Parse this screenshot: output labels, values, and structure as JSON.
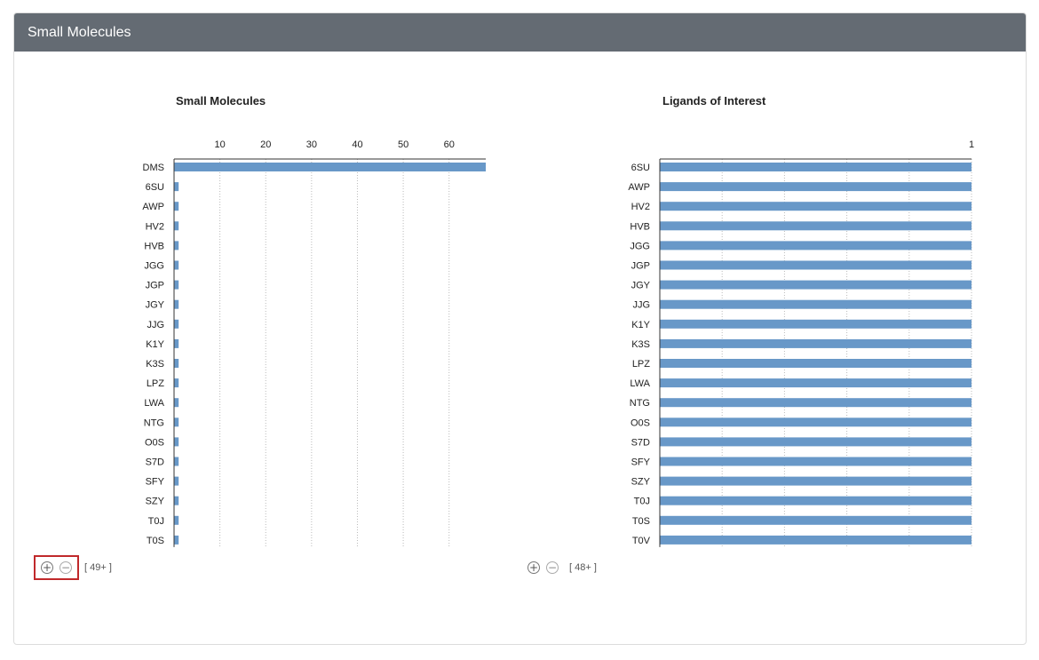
{
  "panel": {
    "title": "Small Molecules"
  },
  "chart_data": [
    {
      "type": "bar",
      "orientation": "horizontal",
      "title": "Small Molecules",
      "xlabel": "",
      "ylabel": "",
      "xlim": [
        0,
        68
      ],
      "xticks": [
        "10",
        "20",
        "30",
        "40",
        "50",
        "60"
      ],
      "xtick_values": [
        10,
        20,
        30,
        40,
        50,
        60
      ],
      "grid": true,
      "color": "#6898c8",
      "categories": [
        "DMS",
        "6SU",
        "AWP",
        "HV2",
        "HVB",
        "JGG",
        "JGP",
        "JGY",
        "JJG",
        "K1Y",
        "K3S",
        "LPZ",
        "LWA",
        "NTG",
        "O0S",
        "S7D",
        "SFY",
        "SZY",
        "T0J",
        "T0S"
      ],
      "values": [
        68,
        1,
        1,
        1,
        1,
        1,
        1,
        1,
        1,
        1,
        1,
        1,
        1,
        1,
        1,
        1,
        1,
        1,
        1,
        1
      ]
    },
    {
      "type": "bar",
      "orientation": "horizontal",
      "title": "Ligands of Interest",
      "xlabel": "",
      "ylabel": "",
      "xlim": [
        0,
        1
      ],
      "xticks": [
        "1"
      ],
      "xtick_values": [
        1
      ],
      "grid": true,
      "color": "#6898c8",
      "categories": [
        "6SU",
        "AWP",
        "HV2",
        "HVB",
        "JGG",
        "JGP",
        "JGY",
        "JJG",
        "K1Y",
        "K3S",
        "LPZ",
        "LWA",
        "NTG",
        "O0S",
        "S7D",
        "SFY",
        "SZY",
        "T0J",
        "T0S",
        "T0V"
      ],
      "values": [
        1,
        1,
        1,
        1,
        1,
        1,
        1,
        1,
        1,
        1,
        1,
        1,
        1,
        1,
        1,
        1,
        1,
        1,
        1,
        1
      ]
    }
  ],
  "zoom_left": {
    "zoom_in": "⊕",
    "zoom_out": "⊖",
    "count": "[ 49+ ]"
  },
  "zoom_right": {
    "zoom_in": "⊕",
    "zoom_out": "⊖",
    "count": "[ 48+ ]"
  }
}
